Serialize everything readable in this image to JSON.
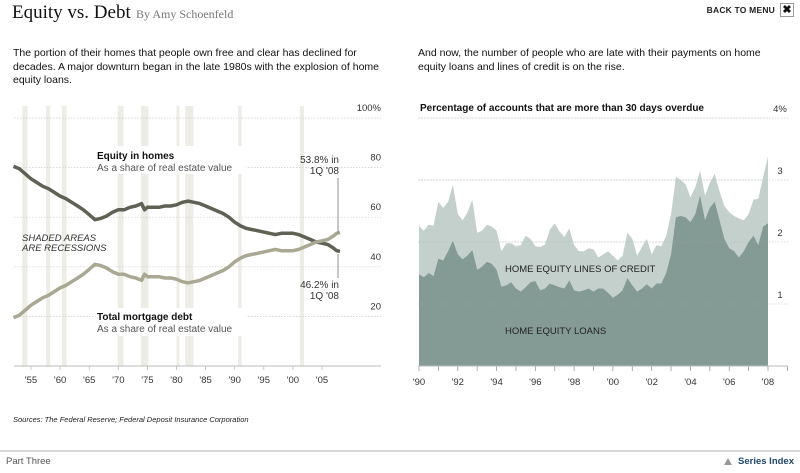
{
  "header": {
    "title": "Equity vs. Debt",
    "byline": "By Amy Schoenfeld",
    "back_label": "BACK TO MENU",
    "close_icon": "close-x-icon"
  },
  "intro": {
    "left": "The portion of their homes that people own free and clear has declined for decades. A major downturn began in the late 1980s with the explosion of home equity loans.",
    "right": "And now, the number of people who are late with their payments on home equity loans and lines of credit is on the rise."
  },
  "footer": {
    "sources": "Sources: The Federal Reserve; Federal Deposit Insurance Corporation",
    "part": "Part Three",
    "series_index": "Series Index",
    "series_icon": "triangle-up-icon"
  },
  "colors": {
    "equity_line": "#5f6154",
    "debt_line": "#a9a893",
    "recession_band": "#edede6",
    "loans_area": "#849a94",
    "credit_area": "#c4d0cc",
    "grid": "#cccccc"
  },
  "chart_data": [
    {
      "type": "line",
      "title": "",
      "xlabel": "",
      "ylabel": "",
      "ylim": [
        0,
        100
      ],
      "xlim": [
        1952,
        2008.25
      ],
      "y_ticks": [
        {
          "value": 100,
          "label": "100%"
        },
        {
          "value": 80,
          "label": "80"
        },
        {
          "value": 60,
          "label": "60"
        },
        {
          "value": 40,
          "label": "40"
        },
        {
          "value": 20,
          "label": "20"
        }
      ],
      "x_ticks": [
        {
          "value": 1955,
          "label": "'55"
        },
        {
          "value": 1960,
          "label": "'60"
        },
        {
          "value": 1965,
          "label": "'65"
        },
        {
          "value": 1970,
          "label": "'70"
        },
        {
          "value": 1975,
          "label": "'75"
        },
        {
          "value": 1980,
          "label": "'80"
        },
        {
          "value": 1985,
          "label": "'85"
        },
        {
          "value": 1990,
          "label": "'90"
        },
        {
          "value": 1995,
          "label": "'95"
        },
        {
          "value": 2000,
          "label": "'00"
        },
        {
          "value": 2005,
          "label": "'05"
        }
      ],
      "grid": true,
      "recessions": [
        [
          1953.5,
          1954.4
        ],
        [
          1957.6,
          1958.3
        ],
        [
          1960.3,
          1961.1
        ],
        [
          1969.9,
          1970.9
        ],
        [
          1973.9,
          1975.2
        ],
        [
          1980.0,
          1980.5
        ],
        [
          1981.5,
          1982.9
        ],
        [
          1990.6,
          1991.2
        ],
        [
          2001.2,
          2001.9
        ]
      ],
      "recession_note": [
        "SHADED AREAS",
        "ARE RECESSIONS"
      ],
      "series": [
        {
          "name": "Equity in homes",
          "subtitle": "As a share of real estate value",
          "x": [
            1952,
            1953,
            1954,
            1955,
            1956,
            1957,
            1958,
            1959,
            1960,
            1961,
            1962,
            1963,
            1964,
            1965,
            1966,
            1967,
            1968,
            1969,
            1970,
            1971,
            1972,
            1973,
            1974,
            1974.5,
            1975,
            1976,
            1977,
            1978,
            1979,
            1980,
            1981,
            1982,
            1983,
            1984,
            1985,
            1986,
            1987,
            1988,
            1989,
            1990,
            1991,
            1992,
            1993,
            1994,
            1995,
            1996,
            1997,
            1998,
            1999,
            2000,
            2001,
            2002,
            2003,
            2004,
            2005,
            2006,
            2007,
            2007.5,
            2008.1
          ],
          "values": [
            80.5,
            79.5,
            77.5,
            75.5,
            74.0,
            72.5,
            71.5,
            70.0,
            68.5,
            67.5,
            66.0,
            64.5,
            63.0,
            61.0,
            59.0,
            59.5,
            60.5,
            62.0,
            63.0,
            63.0,
            64.0,
            64.5,
            65.5,
            63.0,
            64.0,
            64.0,
            64.0,
            64.5,
            64.5,
            65.0,
            66.0,
            66.5,
            66.0,
            65.5,
            64.5,
            63.5,
            62.5,
            61.5,
            60.0,
            58.0,
            56.5,
            55.5,
            55.0,
            54.5,
            54.0,
            53.5,
            53.0,
            53.5,
            53.5,
            53.5,
            53.0,
            52.0,
            51.0,
            50.0,
            49.5,
            49.0,
            47.5,
            46.5,
            46.2
          ]
        },
        {
          "name": "Total mortgage debt",
          "subtitle": "As a share of real estate value",
          "x": [
            1952,
            1953,
            1954,
            1955,
            1956,
            1957,
            1958,
            1959,
            1960,
            1961,
            1962,
            1963,
            1964,
            1965,
            1966,
            1967,
            1968,
            1969,
            1970,
            1971,
            1972,
            1973,
            1974,
            1974.5,
            1975,
            1976,
            1977,
            1978,
            1979,
            1980,
            1981,
            1982,
            1983,
            1984,
            1985,
            1986,
            1987,
            1988,
            1989,
            1990,
            1991,
            1992,
            1993,
            1994,
            1995,
            1996,
            1997,
            1998,
            1999,
            2000,
            2001,
            2002,
            2003,
            2004,
            2005,
            2006,
            2007,
            2007.5,
            2008.1
          ],
          "values": [
            19.5,
            20.5,
            22.5,
            24.5,
            26.0,
            27.5,
            28.5,
            30.0,
            31.5,
            32.5,
            34.0,
            35.5,
            37.0,
            39.0,
            41.0,
            40.5,
            39.5,
            38.0,
            37.0,
            37.0,
            36.0,
            35.5,
            34.5,
            37.0,
            36.0,
            36.0,
            36.0,
            35.5,
            35.5,
            35.0,
            34.0,
            33.5,
            34.0,
            34.5,
            35.5,
            36.5,
            37.5,
            38.5,
            40.0,
            42.0,
            43.5,
            44.5,
            45.0,
            45.5,
            46.0,
            46.5,
            47.0,
            46.5,
            46.5,
            46.5,
            47.0,
            48.0,
            49.0,
            50.0,
            50.5,
            51.0,
            52.5,
            53.5,
            53.8
          ]
        }
      ],
      "annotations": [
        {
          "text": [
            "53.8% in",
            "1Q '08"
          ],
          "series": "Total mortgage debt",
          "value": 53.8
        },
        {
          "text": [
            "46.2% in",
            "1Q '08"
          ],
          "series": "Equity in homes",
          "value": 46.2
        }
      ]
    },
    {
      "type": "area",
      "title": "Percentage of accounts that are more than 30 days overdue",
      "xlabel": "",
      "ylabel": "",
      "ylim": [
        0,
        4
      ],
      "xlim": [
        1990,
        2008
      ],
      "stacked": false,
      "y_ticks": [
        {
          "value": 4,
          "label": "4%"
        },
        {
          "value": 3,
          "label": "3"
        },
        {
          "value": 2,
          "label": "2"
        },
        {
          "value": 1,
          "label": "1"
        }
      ],
      "x_ticks": [
        {
          "value": 1990,
          "label": "'90"
        },
        {
          "value": 1992,
          "label": "'92"
        },
        {
          "value": 1994,
          "label": "'94"
        },
        {
          "value": 1996,
          "label": "'96"
        },
        {
          "value": 1998,
          "label": "'98"
        },
        {
          "value": 2000,
          "label": "'00"
        },
        {
          "value": 2002,
          "label": "'02"
        },
        {
          "value": 2004,
          "label": "'04"
        },
        {
          "value": 2006,
          "label": "'06"
        },
        {
          "value": 2008,
          "label": "'08"
        }
      ],
      "grid": true,
      "x": [
        1990.0,
        1990.25,
        1990.5,
        1990.75,
        1991.0,
        1991.25,
        1991.5,
        1991.75,
        1992.0,
        1992.25,
        1992.5,
        1992.75,
        1993.0,
        1993.25,
        1993.5,
        1993.75,
        1994.0,
        1994.25,
        1994.5,
        1994.75,
        1995.0,
        1995.25,
        1995.5,
        1995.75,
        1996.0,
        1996.25,
        1996.5,
        1996.75,
        1997.0,
        1997.25,
        1997.5,
        1997.75,
        1998.0,
        1998.25,
        1998.5,
        1998.75,
        1999.0,
        1999.25,
        1999.5,
        1999.75,
        2000.0,
        2000.25,
        2000.5,
        2000.75,
        2001.0,
        2001.25,
        2001.5,
        2001.75,
        2002.0,
        2002.25,
        2002.5,
        2002.75,
        2003.0,
        2003.25,
        2003.5,
        2003.75,
        2004.0,
        2004.25,
        2004.5,
        2004.75,
        2005.0,
        2005.25,
        2005.5,
        2005.75,
        2006.0,
        2006.25,
        2006.5,
        2006.75,
        2007.0,
        2007.25,
        2007.5,
        2007.75,
        2008.0
      ],
      "series": [
        {
          "name": "HOME EQUITY LINES OF CREDIT",
          "role": "total (top of light area)",
          "values": [
            2.26,
            2.18,
            2.28,
            2.26,
            2.65,
            2.55,
            2.65,
            2.92,
            2.45,
            2.35,
            2.48,
            2.68,
            2.15,
            2.18,
            2.28,
            2.25,
            2.18,
            1.85,
            1.98,
            1.98,
            1.93,
            1.95,
            2.1,
            2.05,
            1.93,
            1.92,
            1.96,
            2.2,
            2.3,
            2.17,
            2.08,
            2.22,
            1.95,
            1.85,
            1.85,
            1.9,
            1.88,
            1.75,
            1.8,
            1.85,
            1.78,
            1.7,
            1.78,
            2.15,
            2.05,
            1.78,
            1.92,
            2.05,
            1.8,
            1.95,
            1.93,
            2.1,
            2.45,
            3.05,
            3.0,
            2.93,
            2.72,
            2.88,
            3.15,
            2.75,
            2.95,
            3.1,
            2.82,
            2.58,
            2.48,
            2.42,
            2.38,
            2.35,
            2.45,
            2.68,
            2.7,
            3.05,
            3.38
          ]
        },
        {
          "name": "HOME EQUITY LOANS",
          "role": "bottom dark area",
          "values": [
            1.48,
            1.43,
            1.5,
            1.45,
            1.73,
            1.7,
            1.85,
            2.02,
            1.8,
            1.72,
            1.78,
            1.87,
            1.55,
            1.6,
            1.68,
            1.65,
            1.55,
            1.28,
            1.3,
            1.35,
            1.25,
            1.2,
            1.27,
            1.35,
            1.37,
            1.22,
            1.25,
            1.33,
            1.3,
            1.27,
            1.25,
            1.38,
            1.22,
            1.2,
            1.22,
            1.25,
            1.2,
            1.25,
            1.25,
            1.18,
            1.1,
            1.15,
            1.22,
            1.42,
            1.3,
            1.2,
            1.25,
            1.32,
            1.25,
            1.33,
            1.33,
            1.5,
            1.8,
            2.4,
            2.42,
            2.4,
            2.32,
            2.45,
            2.75,
            2.35,
            2.55,
            2.65,
            2.35,
            2.05,
            1.9,
            1.85,
            1.75,
            1.85,
            2.0,
            2.1,
            1.95,
            2.25,
            2.3
          ]
        }
      ]
    }
  ]
}
